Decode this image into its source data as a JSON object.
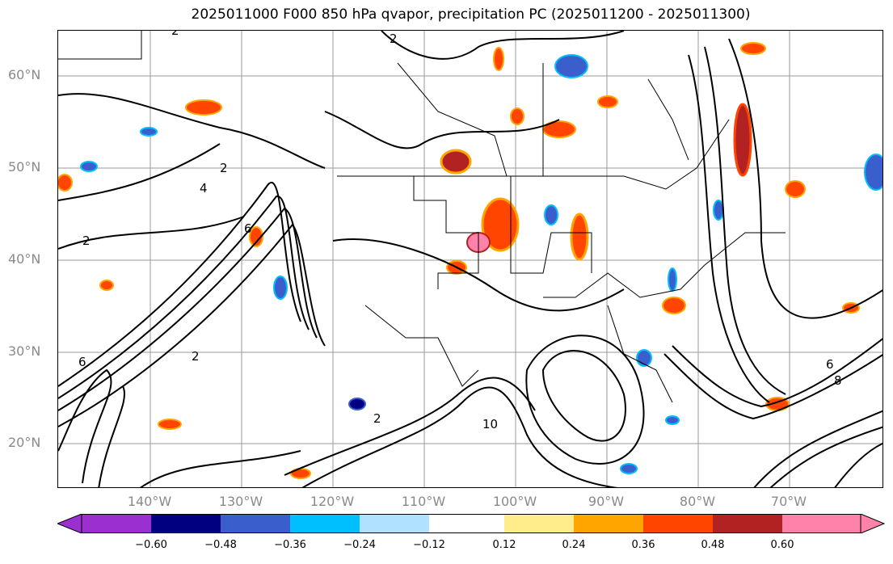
{
  "title": "2025011000 F000 850 hPa qvapor, precipitation PC (2025011200 - 2025011300)",
  "lat_labels": [
    "60°N",
    "50°N",
    "40°N",
    "30°N",
    "20°N"
  ],
  "lon_labels": [
    "140°W",
    "130°W",
    "120°W",
    "110°W",
    "100°W",
    "90°W",
    "80°W",
    "70°W"
  ],
  "colorbar": {
    "tick_labels": [
      "−0.60",
      "−0.48",
      "−0.36",
      "−0.24",
      "−0.12",
      "0.12",
      "0.24",
      "0.36",
      "0.48",
      "0.60"
    ],
    "colors": [
      "#9b30d0",
      "#000080",
      "#3a5fcd",
      "#00bfff",
      "#b0e2ff",
      "#ffffff",
      "#ffec8b",
      "#ffa500",
      "#ff4500",
      "#b22222",
      "#ff82ab",
      "#ff8ed0"
    ]
  },
  "contour_labels": [
    "2",
    "4",
    "6",
    "8",
    "10"
  ],
  "palette": {
    "border": "#000000",
    "grid": "#9a9a9a",
    "contour": "#000000"
  }
}
